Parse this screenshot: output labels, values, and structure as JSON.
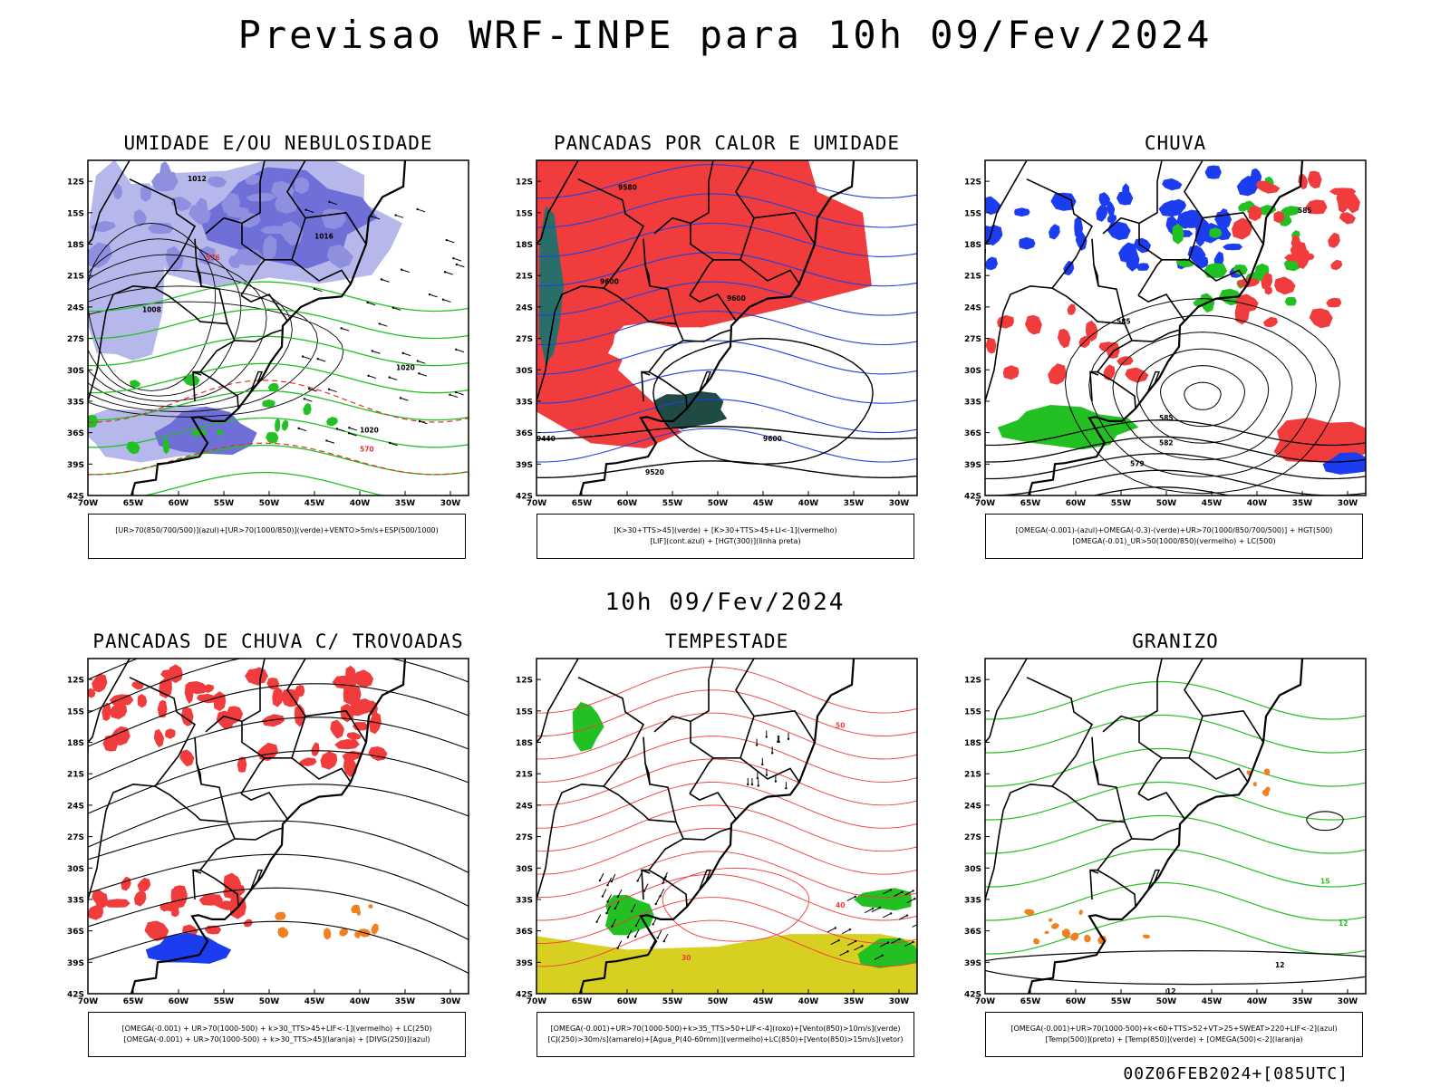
{
  "main_title": "Previsao WRF-INPE  para 10h 09/Fev/2024",
  "mid_title": "10h 09/Fev/2024",
  "footer": "00Z06FEB2024+[085UTC]",
  "chart_data": [
    {
      "type": "map",
      "title": "UMIDADE E/OU NEBULOSIDADE",
      "legend": [
        "[UR>70(850/700/500)](azul)+[UR>70(1000/850)](verde)+VENTO>5m/s+ESP(500/1000)"
      ],
      "contour_labels": [
        "1012",
        "1016",
        "1020",
        "1008",
        "576",
        "570"
      ],
      "colors": {
        "humid_high": "#6f6fd8",
        "humid_low": "#22c022",
        "esp": "#e03030"
      }
    },
    {
      "type": "map",
      "title": "PANCADAS POR CALOR E UMIDADE",
      "legend": [
        "[K>30+TTS>45](verde) + [K>30+TTS>45+LI<-1](vermelho)",
        "[LIF](cont.azul) + [HGT(300)](linha preta)"
      ],
      "contour_labels": [
        "9600",
        "9580",
        "9520",
        "9440"
      ],
      "colors": {
        "instab": "#f03c3c",
        "dark": "#1f4a45",
        "lif": "#2040e0"
      }
    },
    {
      "type": "map",
      "title": "CHUVA",
      "legend": [
        "[OMEGA(-0.001)-(azul)+OMEGA(-0.3)-(verde)+UR>70(1000/850/700/500)] + HGT(500)",
        "[OMEGA(-0.01)_UR>50(1000/850)(vermelho) + LC(500)"
      ],
      "contour_labels": [
        "585",
        "582",
        "579"
      ],
      "colors": {
        "blue": "#1c3cf0",
        "green": "#22c022",
        "red": "#f03c3c"
      }
    },
    {
      "type": "map",
      "title": "PANCADAS DE CHUVA C/ TROVOADAS",
      "legend": [
        "[OMEGA(-0.001) + UR>70(1000-500) + k>30_TTS>45+LIF<-1](vermelho) + LC(250)",
        "[OMEGA(-0.001) + UR>70(1000-500) + k>30_TTS>45](laranja) + [DIVG(250)](azul)"
      ],
      "contour_labels": [],
      "colors": {
        "red": "#f03c3c",
        "orange": "#f08020",
        "blue": "#1c3cf0"
      }
    },
    {
      "type": "map",
      "title": "TEMPESTADE",
      "legend": [
        "[OMEGA(-0.001)+UR>70(1000-500)+k>35_TTS>50+LIF<-4](roxo)+[Vento(850)>10m/s](verde)",
        "[CJ(250)>30m/s](amarelo)+[Agua_P(40-60mm)](vermelho)+LC(850)+[Vento(850)>15m/s](vetor)"
      ],
      "contour_labels": [
        "50",
        "40",
        "30"
      ],
      "colors": {
        "yellow": "#d8d020",
        "green": "#22c022",
        "red": "#f03c3c"
      }
    },
    {
      "type": "map",
      "title": "GRANIZO",
      "legend": [
        "[OMEGA(-0.001)+UR>70(1000-500)+k<60+TTS>52+VT>25+SWEAT>220+LIF<-2](azul)",
        "[Temp(500)](preto) + [Temp(850)](verde) + [OMEGA(500)<-2](laranja)"
      ],
      "contour_labels": [
        "15",
        "12"
      ],
      "colors": {
        "green": "#22c022",
        "orange": "#f08020"
      }
    }
  ],
  "axes": {
    "lat_ticks": [
      "12S",
      "15S",
      "18S",
      "21S",
      "24S",
      "27S",
      "30S",
      "33S",
      "36S",
      "39S",
      "42S"
    ],
    "lon_ticks": [
      "70W",
      "65W",
      "60W",
      "55W",
      "50W",
      "45W",
      "40W",
      "35W",
      "30W"
    ],
    "lat_range": [
      -42,
      -10
    ],
    "lon_range": [
      -70,
      -28
    ]
  }
}
